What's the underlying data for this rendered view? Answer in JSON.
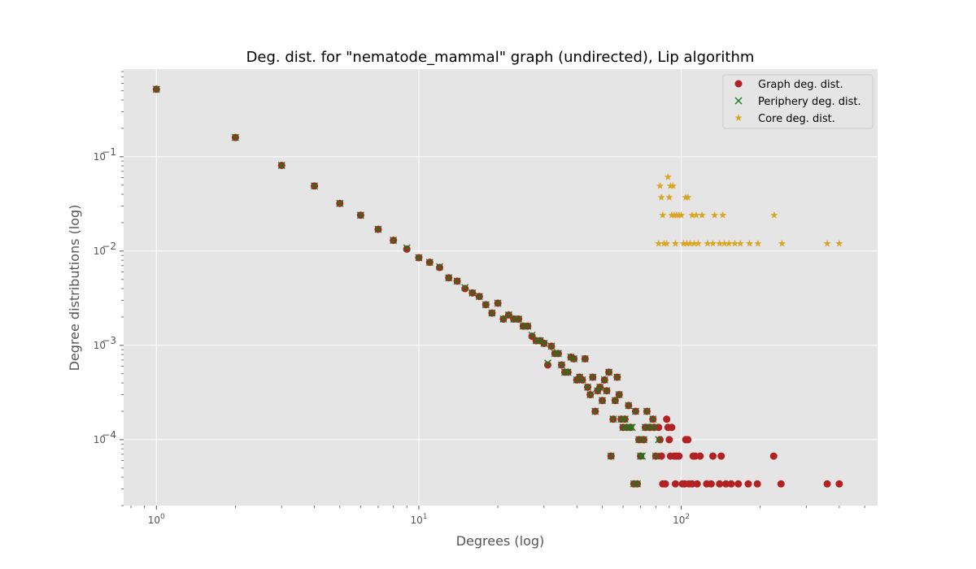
{
  "chart_data": {
    "type": "scatter",
    "title": "Deg. dist. for \"nematode_mammal\" graph (undirected), Lip algorithm",
    "xlabel": "Degrees (log)",
    "ylabel": "Degree distributions (log)",
    "xscale": "log",
    "yscale": "log",
    "xlim": [
      0.75,
      560
    ],
    "ylim": [
      2e-05,
      0.85
    ],
    "x_ticks": [
      {
        "value": 1,
        "mantissa": "10",
        "exp": "0"
      },
      {
        "value": 10,
        "mantissa": "10",
        "exp": "1"
      },
      {
        "value": 100,
        "mantissa": "10",
        "exp": "2"
      }
    ],
    "y_ticks": [
      {
        "value": 0.0001,
        "mantissa": "10",
        "exp": "−4"
      },
      {
        "value": 0.001,
        "mantissa": "10",
        "exp": "−3"
      },
      {
        "value": 0.01,
        "mantissa": "10",
        "exp": "−2"
      },
      {
        "value": 0.1,
        "mantissa": "10",
        "exp": "−1"
      }
    ],
    "grid": true,
    "background": "#e5e5e5",
    "legend_position": "top-right",
    "series": [
      {
        "name": "Graph deg. dist.",
        "marker": "circle",
        "color": "#b22222",
        "points": [
          [
            1,
            0.52
          ],
          [
            2,
            0.16
          ],
          [
            3,
            0.081
          ],
          [
            4,
            0.049
          ],
          [
            5,
            0.032
          ],
          [
            6,
            0.024
          ],
          [
            7,
            0.017
          ],
          [
            8,
            0.013
          ],
          [
            9,
            0.0105
          ],
          [
            10,
            0.0085
          ],
          [
            11,
            0.0076
          ],
          [
            12,
            0.0067
          ],
          [
            13,
            0.0052
          ],
          [
            14,
            0.0048
          ],
          [
            15,
            0.004
          ],
          [
            16,
            0.0036
          ],
          [
            17,
            0.0033
          ],
          [
            18,
            0.0027
          ],
          [
            19,
            0.0022
          ],
          [
            20,
            0.0028
          ],
          [
            21,
            0.0019
          ],
          [
            22,
            0.0021
          ],
          [
            23,
            0.0019
          ],
          [
            24,
            0.0019
          ],
          [
            25,
            0.0016
          ],
          [
            26,
            0.0016
          ],
          [
            27,
            0.00125
          ],
          [
            28,
            0.00112
          ],
          [
            29,
            0.00112
          ],
          [
            30,
            0.00105
          ],
          [
            31,
            0.00062
          ],
          [
            32,
            0.00098
          ],
          [
            33,
            0.00082
          ],
          [
            34,
            0.00082
          ],
          [
            35,
            0.00062
          ],
          [
            36,
            0.00052
          ],
          [
            37,
            0.00052
          ],
          [
            38,
            0.00075
          ],
          [
            39,
            0.00072
          ],
          [
            40,
            0.00043
          ],
          [
            41,
            0.00046
          ],
          [
            42,
            0.00043
          ],
          [
            43,
            0.00072
          ],
          [
            44,
            0.00036
          ],
          [
            45,
            0.0003
          ],
          [
            46,
            0.00046
          ],
          [
            47,
            0.0002
          ],
          [
            48,
            0.00033
          ],
          [
            49,
            0.00036
          ],
          [
            50,
            0.00026
          ],
          [
            51,
            0.00043
          ],
          [
            52,
            0.00033
          ],
          [
            53,
            0.00052
          ],
          [
            54,
            6.7e-05
          ],
          [
            55,
            0.000165
          ],
          [
            56,
            0.00026
          ],
          [
            57,
            0.00046
          ],
          [
            58,
            0.0003
          ],
          [
            59,
            0.000165
          ],
          [
            60,
            0.000135
          ],
          [
            61,
            0.000165
          ],
          [
            62,
            0.000135
          ],
          [
            63,
            0.00023
          ],
          [
            64,
            0.000135
          ],
          [
            66,
            3.4e-05
          ],
          [
            67,
            0.0002
          ],
          [
            68,
            3.4e-05
          ],
          [
            69,
            0.0001
          ],
          [
            70,
            6.7e-05
          ],
          [
            72,
            0.0001
          ],
          [
            73,
            0.000135
          ],
          [
            74,
            0.0002
          ],
          [
            76,
            0.000135
          ],
          [
            78,
            0.000165
          ],
          [
            79,
            0.000135
          ],
          [
            80,
            6.7e-05
          ],
          [
            82,
            0.000135
          ],
          [
            83,
            0.0001
          ],
          [
            84,
            6.7e-05
          ],
          [
            85,
            3.4e-05
          ],
          [
            87,
            3.4e-05
          ],
          [
            88,
            0.000165
          ],
          [
            89,
            0.000135
          ],
          [
            90,
            0.0001
          ],
          [
            91,
            6.7e-05
          ],
          [
            92,
            0.000135
          ],
          [
            94,
            6.7e-05
          ],
          [
            95,
            3.4e-05
          ],
          [
            96,
            6.7e-05
          ],
          [
            98,
            6.7e-05
          ],
          [
            101,
            3.4e-05
          ],
          [
            103,
            3.4e-05
          ],
          [
            104,
            0.0001
          ],
          [
            106,
            0.0001
          ],
          [
            107,
            3.4e-05
          ],
          [
            110,
            3.4e-05
          ],
          [
            111,
            6.7e-05
          ],
          [
            113,
            6.7e-05
          ],
          [
            115,
            3.4e-05
          ],
          [
            118,
            6.7e-05
          ],
          [
            125,
            3.4e-05
          ],
          [
            130,
            3.4e-05
          ],
          [
            132,
            6.7e-05
          ],
          [
            140,
            3.4e-05
          ],
          [
            142,
            6.7e-05
          ],
          [
            148,
            3.4e-05
          ],
          [
            155,
            3.4e-05
          ],
          [
            165,
            3.4e-05
          ],
          [
            180,
            3.4e-05
          ],
          [
            195,
            3.4e-05
          ],
          [
            225,
            6.7e-05
          ],
          [
            240,
            3.4e-05
          ],
          [
            360,
            3.4e-05
          ],
          [
            400,
            3.4e-05
          ]
        ]
      },
      {
        "name": "Periphery deg. dist.",
        "marker": "x",
        "color": "#1a7a1a",
        "points": [
          [
            1,
            0.52
          ],
          [
            2,
            0.16
          ],
          [
            3,
            0.081
          ],
          [
            4,
            0.049
          ],
          [
            5,
            0.032
          ],
          [
            6,
            0.024
          ],
          [
            7,
            0.017
          ],
          [
            8,
            0.013
          ],
          [
            9,
            0.0108
          ],
          [
            10,
            0.0085
          ],
          [
            11,
            0.0076
          ],
          [
            12,
            0.0068
          ],
          [
            13,
            0.0052
          ],
          [
            14,
            0.0048
          ],
          [
            15,
            0.0041
          ],
          [
            16,
            0.0036
          ],
          [
            17,
            0.0033
          ],
          [
            18,
            0.0027
          ],
          [
            19,
            0.0022
          ],
          [
            20,
            0.0028
          ],
          [
            21,
            0.0019
          ],
          [
            22,
            0.0021
          ],
          [
            23,
            0.0019
          ],
          [
            24,
            0.0019
          ],
          [
            25,
            0.0016
          ],
          [
            26,
            0.0016
          ],
          [
            27,
            0.00128
          ],
          [
            28,
            0.00112
          ],
          [
            29,
            0.00112
          ],
          [
            30,
            0.00105
          ],
          [
            31,
            0.00065
          ],
          [
            32,
            0.00098
          ],
          [
            33,
            0.00082
          ],
          [
            34,
            0.00082
          ],
          [
            35,
            0.00062
          ],
          [
            36,
            0.00052
          ],
          [
            37,
            0.00052
          ],
          [
            38,
            0.00075
          ],
          [
            39,
            0.00072
          ],
          [
            40,
            0.00043
          ],
          [
            41,
            0.00046
          ],
          [
            42,
            0.00043
          ],
          [
            43,
            0.00072
          ],
          [
            44,
            0.00036
          ],
          [
            45,
            0.0003
          ],
          [
            46,
            0.00046
          ],
          [
            47,
            0.0002
          ],
          [
            48,
            0.00033
          ],
          [
            49,
            0.00036
          ],
          [
            50,
            0.00026
          ],
          [
            51,
            0.00043
          ],
          [
            52,
            0.00033
          ],
          [
            53,
            0.00052
          ],
          [
            54,
            6.7e-05
          ],
          [
            55,
            0.000165
          ],
          [
            56,
            0.00026
          ],
          [
            57,
            0.00046
          ],
          [
            58,
            0.0003
          ],
          [
            59,
            0.000165
          ],
          [
            60,
            0.000135
          ],
          [
            61,
            0.000165
          ],
          [
            62,
            0.000135
          ],
          [
            63,
            0.00023
          ],
          [
            64,
            0.000135
          ],
          [
            65,
            0.000135
          ],
          [
            66,
            3.4e-05
          ],
          [
            67,
            0.0002
          ],
          [
            68,
            3.4e-05
          ],
          [
            69,
            0.0001
          ],
          [
            70,
            6.7e-05
          ],
          [
            71,
            6.7e-05
          ],
          [
            72,
            0.0001
          ],
          [
            73,
            0.000135
          ],
          [
            74,
            0.0002
          ],
          [
            76,
            0.000135
          ],
          [
            78,
            0.000165
          ],
          [
            79,
            0.000135
          ],
          [
            80,
            6.7e-05
          ],
          [
            82,
            0.0001
          ]
        ]
      },
      {
        "name": "Core deg. dist.",
        "marker": "star",
        "color": "#daa520",
        "points": [
          [
            82,
            0.012
          ],
          [
            83,
            0.049
          ],
          [
            84,
            0.037
          ],
          [
            85,
            0.024
          ],
          [
            86,
            0.012
          ],
          [
            88,
            0.012
          ],
          [
            89,
            0.061
          ],
          [
            90,
            0.037
          ],
          [
            91,
            0.049
          ],
          [
            92,
            0.024
          ],
          [
            93,
            0.049
          ],
          [
            94,
            0.024
          ],
          [
            95,
            0.012
          ],
          [
            96,
            0.024
          ],
          [
            98,
            0.024
          ],
          [
            100,
            0.024
          ],
          [
            102,
            0.012
          ],
          [
            104,
            0.037
          ],
          [
            105,
            0.012
          ],
          [
            106,
            0.037
          ],
          [
            108,
            0.012
          ],
          [
            110,
            0.024
          ],
          [
            112,
            0.012
          ],
          [
            114,
            0.024
          ],
          [
            116,
            0.012
          ],
          [
            120,
            0.024
          ],
          [
            126,
            0.012
          ],
          [
            132,
            0.012
          ],
          [
            134,
            0.024
          ],
          [
            140,
            0.012
          ],
          [
            144,
            0.024
          ],
          [
            146,
            0.012
          ],
          [
            152,
            0.012
          ],
          [
            160,
            0.012
          ],
          [
            168,
            0.012
          ],
          [
            182,
            0.012
          ],
          [
            196,
            0.012
          ],
          [
            226,
            0.024
          ],
          [
            242,
            0.012
          ],
          [
            360,
            0.012
          ],
          [
            400,
            0.012
          ]
        ]
      }
    ]
  }
}
